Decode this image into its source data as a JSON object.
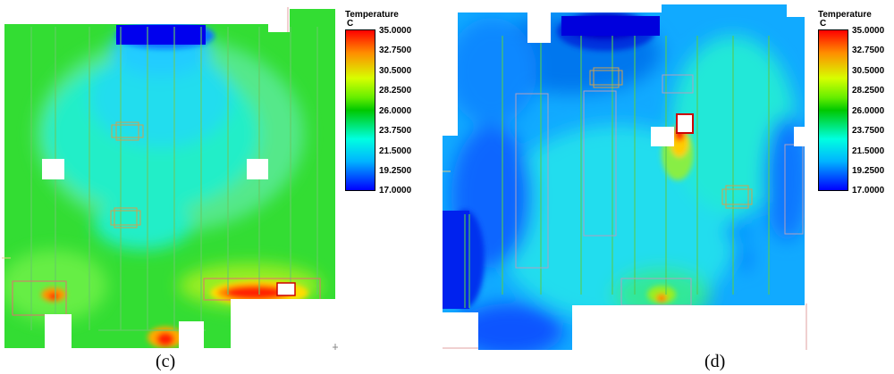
{
  "legend": {
    "title": "Temperature",
    "unit": "C",
    "ticks": [
      "35.0000",
      "32.7500",
      "30.5000",
      "28.2500",
      "26.0000",
      "23.7500",
      "21.5000",
      "19.2500",
      "17.0000"
    ],
    "colors": [
      "#ff0000",
      "#ff8c00",
      "#d7ff00",
      "#00c800",
      "#00ffe0",
      "#00b4ff",
      "#0000ff"
    ]
  },
  "panels": [
    {
      "caption": "(c)"
    },
    {
      "caption": "(d)"
    }
  ]
}
